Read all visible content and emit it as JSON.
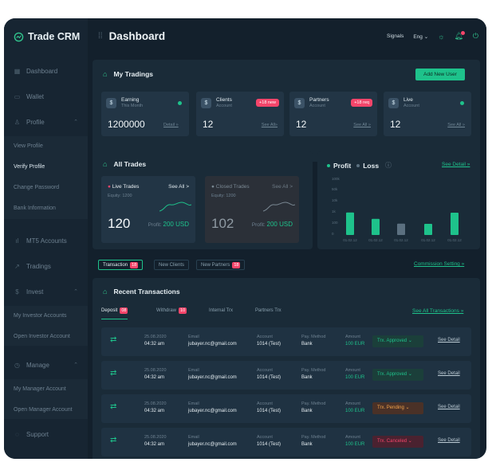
{
  "app": {
    "brand": "Trade CRM"
  },
  "sidebar": {
    "items": [
      {
        "label": "Dashboard",
        "icon": "grid-icon"
      },
      {
        "label": "Wallet",
        "icon": "wallet-icon"
      },
      {
        "label": "Profile",
        "icon": "user-icon"
      }
    ],
    "profile_sub": [
      "View Profile",
      "Verify Profile",
      "Change Password",
      "Bank Information"
    ],
    "items2": [
      {
        "label": "MT5 Accounts",
        "icon": "bar-chart-icon"
      },
      {
        "label": "Tradings",
        "icon": "trend-icon"
      },
      {
        "label": "Invest",
        "icon": "dollar-icon"
      }
    ],
    "invest_sub": [
      "My Investor Accounts",
      "Open Investor Account"
    ],
    "manage": {
      "label": "Manage",
      "icon": "clock-icon"
    },
    "manage_sub": [
      "My Manager Account",
      "Open Manager Account"
    ],
    "support": {
      "label": "Support",
      "icon": "chat-icon"
    }
  },
  "header": {
    "title": "Dashboard",
    "signals": "Signals",
    "lang": "Eng"
  },
  "tradings": {
    "title": "My Tradings",
    "add_user": "Add New User",
    "cards": [
      {
        "title": "Earning",
        "sub": "This Month",
        "value": "1200000",
        "link": "Detail »",
        "badge": ""
      },
      {
        "title": "Clients",
        "sub": "Account",
        "value": "12",
        "link": "See All»",
        "badge": "+18 new"
      },
      {
        "title": "Partners",
        "sub": "Account",
        "value": "12",
        "link": "See All »",
        "badge": "+18 req"
      },
      {
        "title": "Live",
        "sub": "Account",
        "value": "12",
        "link": "See All »",
        "badge": ""
      }
    ]
  },
  "trades": {
    "title": "All Trades",
    "live": {
      "title": "Live Trades",
      "link": "See All >",
      "equity": "Equity: 1200",
      "value": "120",
      "profit_label": "Profit:",
      "profit": "200 USD"
    },
    "closed": {
      "title": "Closed Trades",
      "link": "See All >",
      "equity": "Equity: 1200",
      "value": "102",
      "profit_label": "Profit:",
      "profit": "200 USD"
    }
  },
  "profit_chart": {
    "profit": "Profit",
    "loss": "Loss",
    "link": "See Detail »",
    "colors": {
      "profit": "#1ec28b",
      "loss": "#5b7080"
    }
  },
  "chart_data": {
    "type": "bar",
    "categories": [
      "01.02.12",
      "01.02.12",
      "01.02.12",
      "01.02.12",
      "01.02.12"
    ],
    "ytick_labels": [
      "100k",
      "50k",
      "10k",
      "1k",
      "100",
      "0"
    ],
    "series": [
      {
        "name": "Profit",
        "values": [
          1200,
          500,
          null,
          100,
          1000
        ]
      },
      {
        "name": "Loss",
        "values": [
          null,
          null,
          120,
          null,
          null
        ]
      }
    ]
  },
  "tabs": [
    {
      "label": "Transaction",
      "badge": "18"
    },
    {
      "label": "New Clients",
      "badge": ""
    },
    {
      "label": "New Partners",
      "badge": "18"
    }
  ],
  "commission_link": "Commission Setting »",
  "transactions": {
    "title": "Recent Transactions",
    "tabs": [
      {
        "label": "Deposit",
        "badge": "08"
      },
      {
        "label": "Withdraw",
        "badge": "10"
      },
      {
        "label": "Internal Trx",
        "badge": ""
      },
      {
        "label": "Partners Trx",
        "badge": ""
      }
    ],
    "see_all": "See All Transactions »",
    "headers": {
      "email": "Email",
      "account": "Account",
      "method": "Pay. Method",
      "amount": "Amount"
    },
    "rows": [
      {
        "date": "25.08.2020",
        "time": "04:32 am",
        "email": "jubayer.nc@gmail.com",
        "account": "1014 (Test)",
        "method": "Bank",
        "amount": "100 EUR",
        "status": "Trx. Approved",
        "status_color": "#1ec28b",
        "status_bg": "#1b3f3a",
        "link": "See Detail"
      },
      {
        "date": "25.08.2020",
        "time": "04:32 am",
        "email": "jubayer.nc@gmail.com",
        "account": "1014 (Test)",
        "method": "Bank",
        "amount": "100 EUR",
        "status": "Trx. Approved",
        "status_color": "#1ec28b",
        "status_bg": "#1b3f3a",
        "link": "See Detail"
      },
      {
        "date": "25.08.2020",
        "time": "04:32 am",
        "email": "jubayer.nc@gmail.com",
        "account": "1014 (Test)",
        "method": "Bank",
        "amount": "100 EUR",
        "status": "Trx. Pending",
        "status_color": "#f2a34a",
        "status_bg": "#4a3127",
        "link": "See Detail"
      },
      {
        "date": "25.08.2020",
        "time": "04:32 am",
        "email": "jubayer.nc@gmail.com",
        "account": "1014 (Test)",
        "method": "Bank",
        "amount": "100 EUR",
        "status": "Trx. Canceled",
        "status_color": "#f5456a",
        "status_bg": "#4a2230",
        "link": "See Detail"
      }
    ]
  }
}
